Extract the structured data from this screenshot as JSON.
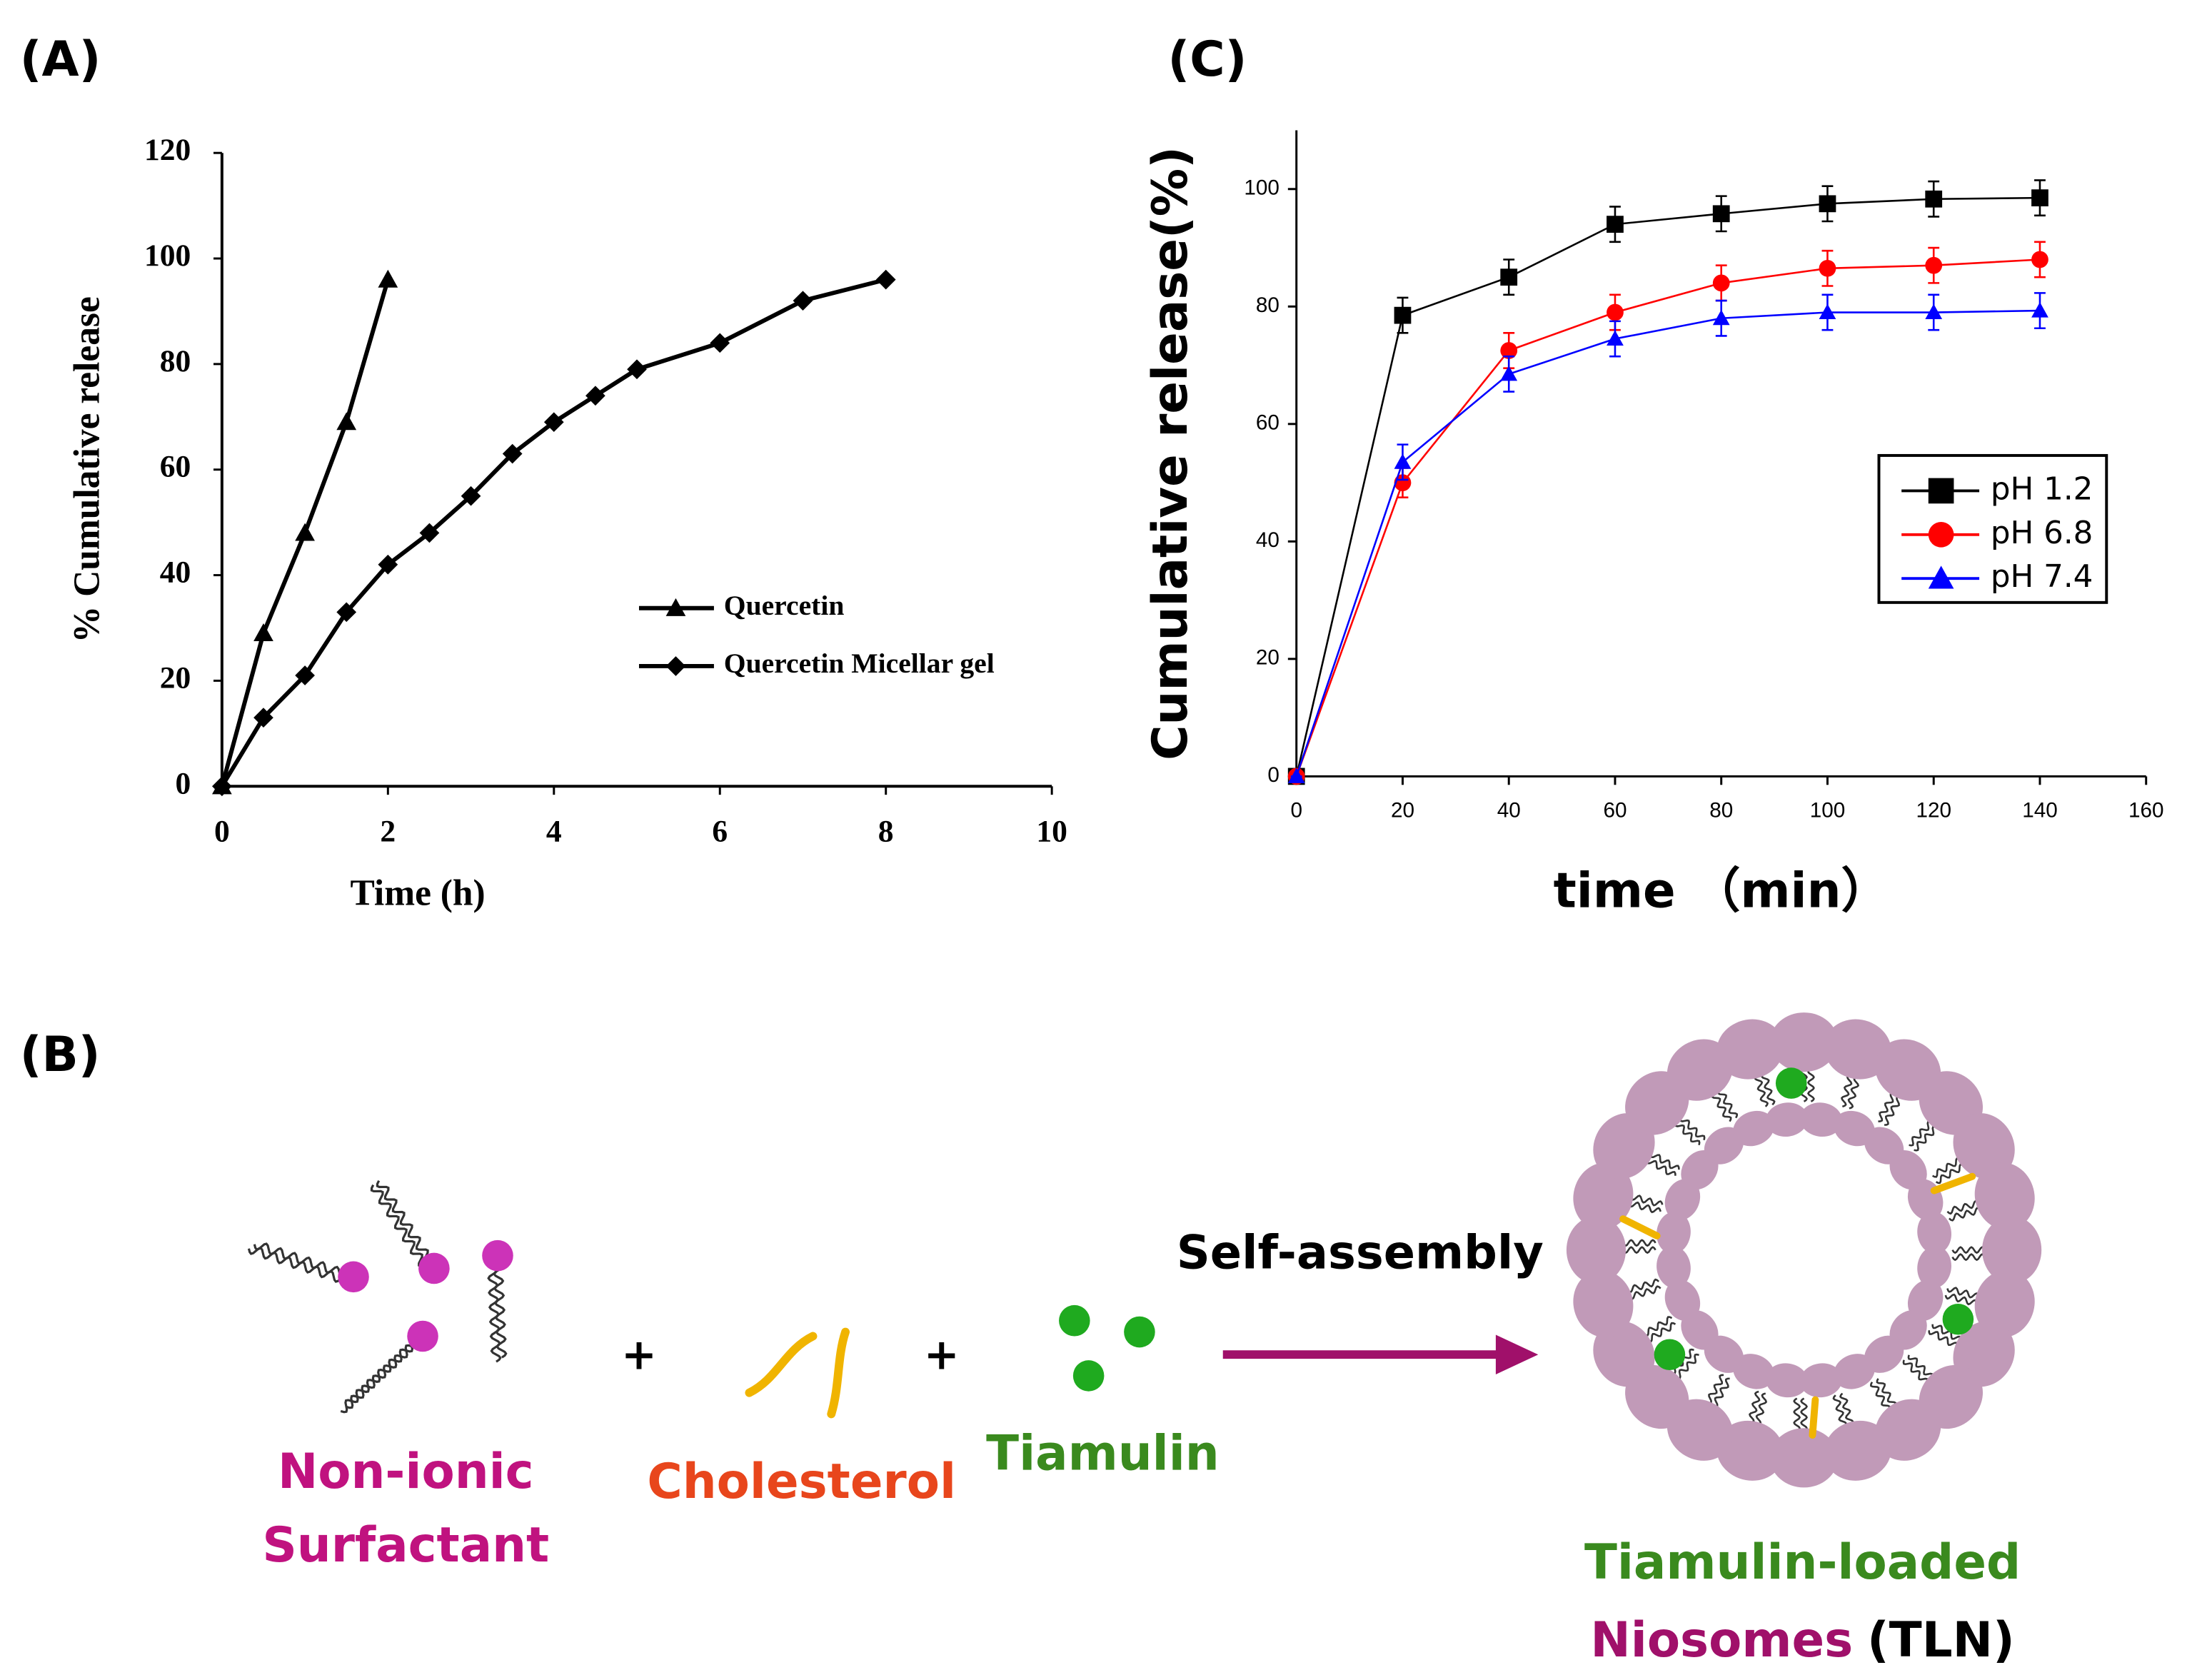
{
  "panel_labels": [
    "(A)",
    "(B)",
    "(C)"
  ],
  "chart_data": [
    {
      "type": "line",
      "x_label": "Time (h)",
      "y_label": "% Cumulative release",
      "xlim": [
        0,
        10
      ],
      "xticks": [
        0,
        2,
        4,
        6,
        8,
        10
      ],
      "ylim": [
        0,
        120
      ],
      "yticks": [
        0,
        20,
        40,
        60,
        80,
        100,
        120
      ],
      "legend": "center-right",
      "color": "#000000",
      "series": [
        {
          "name": "Quercetin",
          "marker": "triangle",
          "color": "#000000",
          "x": [
            0,
            0.5,
            1,
            1.5,
            2
          ],
          "values": [
            0,
            29,
            48,
            69,
            96
          ]
        },
        {
          "name": "Quercetin Micellar gel",
          "marker": "diamond",
          "color": "#000000",
          "x": [
            0,
            0.5,
            1,
            1.5,
            2,
            2.5,
            3,
            3.5,
            4,
            4.5,
            5,
            6,
            7,
            8
          ],
          "values": [
            0,
            13,
            21,
            33,
            42,
            48,
            55,
            63,
            69,
            74,
            79,
            84,
            92,
            96
          ]
        }
      ]
    },
    {
      "type": "line",
      "x_label": "time （min）",
      "y_label": "Cumulative release(%)",
      "xlim": [
        0,
        160
      ],
      "xticks": [
        0,
        20,
        40,
        60,
        80,
        100,
        120,
        140,
        160
      ],
      "ylim": [
        0,
        110
      ],
      "yticks": [
        0,
        20,
        40,
        60,
        80,
        100
      ],
      "legend": "center-right",
      "series": [
        {
          "name": "pH 1.2",
          "marker": "square",
          "color": "#000000",
          "x": [
            0,
            20,
            40,
            60,
            80,
            100,
            120,
            140
          ],
          "values": [
            0,
            78.5,
            85,
            94,
            95.8,
            97.5,
            98.3,
            98.5
          ],
          "errors": [
            0,
            3,
            3,
            3,
            3,
            3,
            3,
            3
          ]
        },
        {
          "name": "pH 6.8",
          "marker": "circle",
          "color": "#ff0000",
          "x": [
            0,
            20,
            40,
            60,
            80,
            100,
            120,
            140
          ],
          "values": [
            0,
            50,
            72.5,
            79,
            84,
            86.5,
            87,
            88
          ],
          "errors": [
            0,
            2.5,
            3,
            3,
            3,
            3,
            3,
            3
          ]
        },
        {
          "name": "pH 7.4",
          "marker": "triangle",
          "color": "#0000ff",
          "x": [
            0,
            20,
            40,
            60,
            80,
            100,
            120,
            140
          ],
          "values": [
            0,
            53.5,
            68.5,
            74.5,
            78,
            79,
            79,
            79.3
          ],
          "errors": [
            0,
            3,
            3,
            3,
            3,
            3,
            3,
            3
          ]
        }
      ]
    }
  ],
  "diagram": {
    "surfactant": [
      "Non-ionic",
      "Surfactant"
    ],
    "cholesterol": "Cholesterol",
    "tiamulin": "Tiamulin",
    "plus": "+",
    "arrow_label": "Self-assembly",
    "product": [
      "Tiamulin-loaded",
      "Niosomes",
      "(TLN)"
    ]
  }
}
